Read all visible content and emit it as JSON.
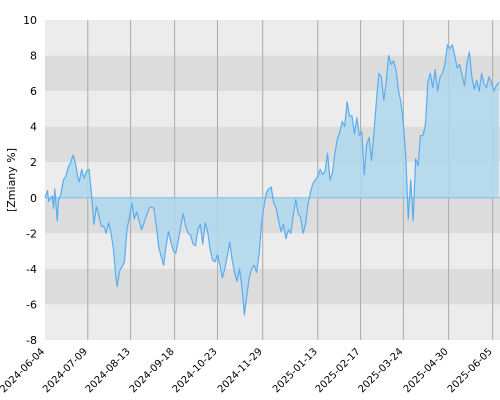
{
  "chart_data": {
    "type": "area",
    "ylabel": "[Zmiany %]",
    "xlabel": "",
    "ylim": [
      -8,
      10
    ],
    "yticks": [
      "10",
      "8",
      "6",
      "4",
      "2",
      "0",
      "-2",
      "-4",
      "-6",
      "-8"
    ],
    "x_range": [
      "2024-06-04",
      "2025-06-11"
    ],
    "xticks": [
      "2024-06-04",
      "2024-07-09",
      "2024-08-13",
      "2024-09-18",
      "2024-10-23",
      "2024-11-29",
      "2025-01-13",
      "2025-02-17",
      "2025-03-24",
      "2025-04-30",
      "2025-06-05"
    ],
    "grid": true,
    "bands": "alternating gray horizontal bands every 2 units",
    "colors": {
      "line": "#5aacf0",
      "fill": "#aed8ec",
      "band_light": "#ececec",
      "band_dark": "#dcdcdc",
      "zero_line": "#7fbfe8",
      "grid": "#aaaaaa"
    },
    "series": [
      {
        "values": [
          [
            "2024-06-04",
            0.0
          ],
          [
            "2024-06-06",
            0.4
          ],
          [
            "2024-06-07",
            -0.2
          ],
          [
            "2024-06-10",
            0.1
          ],
          [
            "2024-06-11",
            -0.6
          ],
          [
            "2024-06-12",
            0.5
          ],
          [
            "2024-06-14",
            -1.3
          ],
          [
            "2024-06-15",
            -0.2
          ],
          [
            "2024-06-17",
            0.2
          ],
          [
            "2024-06-19",
            1.0
          ],
          [
            "2024-06-21",
            1.2
          ],
          [
            "2024-06-23",
            1.7
          ],
          [
            "2024-06-25",
            2.0
          ],
          [
            "2024-06-27",
            2.4
          ],
          [
            "2024-06-29",
            1.9
          ],
          [
            "2024-07-01",
            1.1
          ],
          [
            "2024-07-02",
            0.9
          ],
          [
            "2024-07-04",
            1.6
          ],
          [
            "2024-07-06",
            1.1
          ],
          [
            "2024-07-08",
            1.5
          ],
          [
            "2024-07-10",
            1.6
          ],
          [
            "2024-07-12",
            0.2
          ],
          [
            "2024-07-14",
            -1.5
          ],
          [
            "2024-07-16",
            -0.5
          ],
          [
            "2024-07-18",
            -1.0
          ],
          [
            "2024-07-20",
            -1.6
          ],
          [
            "2024-07-22",
            -1.6
          ],
          [
            "2024-07-24",
            -2.0
          ],
          [
            "2024-07-26",
            -1.4
          ],
          [
            "2024-07-28",
            -2.0
          ],
          [
            "2024-07-30",
            -2.9
          ],
          [
            "2024-08-01",
            -4.5
          ],
          [
            "2024-08-02",
            -5.0
          ],
          [
            "2024-08-04",
            -4.1
          ],
          [
            "2024-08-06",
            -3.9
          ],
          [
            "2024-08-08",
            -3.6
          ],
          [
            "2024-08-10",
            -1.8
          ],
          [
            "2024-08-12",
            -1.1
          ],
          [
            "2024-08-14",
            -0.3
          ],
          [
            "2024-08-16",
            -1.2
          ],
          [
            "2024-08-18",
            -0.8
          ],
          [
            "2024-08-20",
            -1.3
          ],
          [
            "2024-08-22",
            -1.8
          ],
          [
            "2024-08-24",
            -1.4
          ],
          [
            "2024-08-26",
            -1.0
          ],
          [
            "2024-08-28",
            -0.6
          ],
          [
            "2024-08-30",
            -0.5
          ],
          [
            "2024-09-01",
            -0.6
          ],
          [
            "2024-09-03",
            -1.6
          ],
          [
            "2024-09-05",
            -2.8
          ],
          [
            "2024-09-07",
            -3.3
          ],
          [
            "2024-09-09",
            -3.8
          ],
          [
            "2024-09-11",
            -2.7
          ],
          [
            "2024-09-13",
            -1.9
          ],
          [
            "2024-09-15",
            -2.5
          ],
          [
            "2024-09-17",
            -3.0
          ],
          [
            "2024-09-19",
            -3.1
          ],
          [
            "2024-09-21",
            -2.4
          ],
          [
            "2024-09-23",
            -1.6
          ],
          [
            "2024-09-25",
            -0.9
          ],
          [
            "2024-09-27",
            -1.6
          ],
          [
            "2024-09-29",
            -2.0
          ],
          [
            "2024-10-01",
            -2.1
          ],
          [
            "2024-10-03",
            -2.6
          ],
          [
            "2024-10-05",
            -2.7
          ],
          [
            "2024-10-07",
            -1.8
          ],
          [
            "2024-10-09",
            -1.5
          ],
          [
            "2024-10-11",
            -2.6
          ],
          [
            "2024-10-13",
            -1.4
          ],
          [
            "2024-10-15",
            -1.9
          ],
          [
            "2024-10-17",
            -2.9
          ],
          [
            "2024-10-19",
            -3.5
          ],
          [
            "2024-10-21",
            -3.6
          ],
          [
            "2024-10-23",
            -3.2
          ],
          [
            "2024-10-25",
            -3.8
          ],
          [
            "2024-10-27",
            -4.5
          ],
          [
            "2024-10-29",
            -4.0
          ],
          [
            "2024-10-31",
            -3.3
          ],
          [
            "2024-11-02",
            -2.5
          ],
          [
            "2024-11-04",
            -3.5
          ],
          [
            "2024-11-06",
            -4.2
          ],
          [
            "2024-11-08",
            -4.7
          ],
          [
            "2024-11-10",
            -4.0
          ],
          [
            "2024-11-12",
            -5.0
          ],
          [
            "2024-11-14",
            -6.6
          ],
          [
            "2024-11-16",
            -5.5
          ],
          [
            "2024-11-18",
            -4.5
          ],
          [
            "2024-11-20",
            -4.0
          ],
          [
            "2024-11-22",
            -3.8
          ],
          [
            "2024-11-24",
            -4.2
          ],
          [
            "2024-11-26",
            -3.2
          ],
          [
            "2024-11-28",
            -1.5
          ],
          [
            "2024-11-30",
            -0.5
          ],
          [
            "2024-12-02",
            0.3
          ],
          [
            "2024-12-04",
            0.5
          ],
          [
            "2024-12-06",
            0.6
          ],
          [
            "2024-12-08",
            -0.3
          ],
          [
            "2024-12-10",
            -0.6
          ],
          [
            "2024-12-12",
            -1.3
          ],
          [
            "2024-12-14",
            -1.9
          ],
          [
            "2024-12-16",
            -1.5
          ],
          [
            "2024-12-18",
            -2.3
          ],
          [
            "2024-12-20",
            -1.8
          ],
          [
            "2024-12-22",
            -2.0
          ],
          [
            "2024-12-24",
            -1.0
          ],
          [
            "2024-12-26",
            -0.1
          ],
          [
            "2024-12-28",
            -0.9
          ],
          [
            "2024-12-30",
            -1.1
          ],
          [
            "2025-01-01",
            -2.0
          ],
          [
            "2025-01-03",
            -1.5
          ],
          [
            "2025-01-05",
            -0.4
          ],
          [
            "2025-01-07",
            0.3
          ],
          [
            "2025-01-09",
            0.8
          ],
          [
            "2025-01-11",
            1.0
          ],
          [
            "2025-01-13",
            1.2
          ],
          [
            "2025-01-15",
            1.6
          ],
          [
            "2025-01-17",
            1.3
          ],
          [
            "2025-01-19",
            1.5
          ],
          [
            "2025-01-21",
            2.5
          ],
          [
            "2025-01-23",
            1.0
          ],
          [
            "2025-01-25",
            1.4
          ],
          [
            "2025-01-27",
            2.5
          ],
          [
            "2025-01-29",
            3.3
          ],
          [
            "2025-01-31",
            3.7
          ],
          [
            "2025-02-02",
            4.3
          ],
          [
            "2025-02-04",
            4.0
          ],
          [
            "2025-02-06",
            5.4
          ],
          [
            "2025-02-08",
            4.6
          ],
          [
            "2025-02-10",
            4.6
          ],
          [
            "2025-02-12",
            3.6
          ],
          [
            "2025-02-14",
            4.5
          ],
          [
            "2025-02-16",
            3.5
          ],
          [
            "2025-02-18",
            3.7
          ],
          [
            "2025-02-20",
            1.3
          ],
          [
            "2025-02-22",
            3.0
          ],
          [
            "2025-02-24",
            3.4
          ],
          [
            "2025-02-26",
            2.1
          ],
          [
            "2025-02-28",
            3.7
          ],
          [
            "2025-03-02",
            5.5
          ],
          [
            "2025-03-04",
            7.0
          ],
          [
            "2025-03-06",
            6.8
          ],
          [
            "2025-03-08",
            5.5
          ],
          [
            "2025-03-10",
            6.5
          ],
          [
            "2025-03-12",
            8.0
          ],
          [
            "2025-03-14",
            7.5
          ],
          [
            "2025-03-16",
            7.7
          ],
          [
            "2025-03-18",
            7.2
          ],
          [
            "2025-03-20",
            6.0
          ],
          [
            "2025-03-22",
            5.4
          ],
          [
            "2025-03-24",
            4.2
          ],
          [
            "2025-03-26",
            2.3
          ],
          [
            "2025-03-28",
            -1.2
          ],
          [
            "2025-03-30",
            1.0
          ],
          [
            "2025-04-01",
            -1.3
          ],
          [
            "2025-04-03",
            2.2
          ],
          [
            "2025-04-05",
            1.8
          ],
          [
            "2025-04-07",
            3.5
          ],
          [
            "2025-04-09",
            3.5
          ],
          [
            "2025-04-11",
            4.1
          ],
          [
            "2025-04-13",
            6.5
          ],
          [
            "2025-04-15",
            7.0
          ],
          [
            "2025-04-17",
            6.2
          ],
          [
            "2025-04-19",
            7.2
          ],
          [
            "2025-04-21",
            6.0
          ],
          [
            "2025-04-23",
            6.8
          ],
          [
            "2025-04-25",
            7.0
          ],
          [
            "2025-04-27",
            7.5
          ],
          [
            "2025-04-29",
            8.6
          ],
          [
            "2025-05-01",
            8.4
          ],
          [
            "2025-05-03",
            8.6
          ],
          [
            "2025-05-05",
            8.0
          ],
          [
            "2025-05-07",
            7.3
          ],
          [
            "2025-05-09",
            7.5
          ],
          [
            "2025-05-11",
            6.9
          ],
          [
            "2025-05-13",
            6.3
          ],
          [
            "2025-05-15",
            7.6
          ],
          [
            "2025-05-17",
            8.2
          ],
          [
            "2025-05-19",
            6.8
          ],
          [
            "2025-05-21",
            6.1
          ],
          [
            "2025-05-23",
            6.6
          ],
          [
            "2025-05-25",
            6.0
          ],
          [
            "2025-05-27",
            7.0
          ],
          [
            "2025-05-29",
            6.4
          ],
          [
            "2025-05-31",
            6.2
          ],
          [
            "2025-06-02",
            6.8
          ],
          [
            "2025-06-04",
            6.5
          ],
          [
            "2025-06-06",
            6.0
          ],
          [
            "2025-06-08",
            6.3
          ],
          [
            "2025-06-10",
            6.5
          ]
        ]
      }
    ]
  }
}
